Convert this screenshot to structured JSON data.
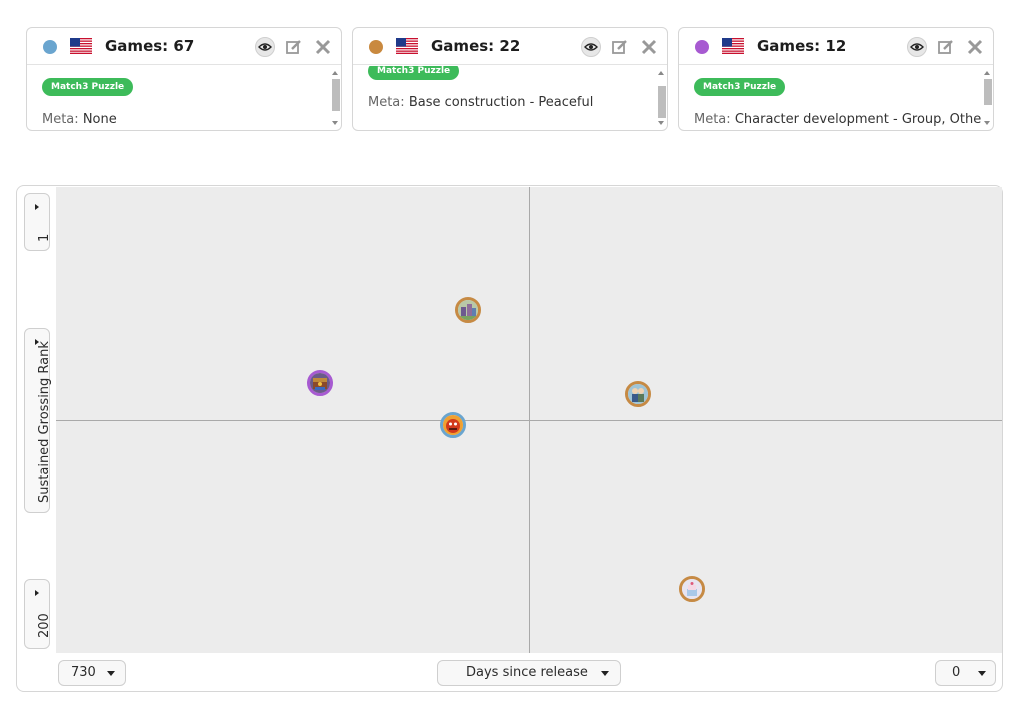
{
  "cards": [
    {
      "dot_color": "#6aa5cf",
      "flag": "us-flag-icon",
      "games": "Games: 67",
      "tag": "Match3 Puzzle",
      "meta_key": "Meta:",
      "meta_value": "None"
    },
    {
      "dot_color": "#c9893f",
      "flag": "us-flag-icon",
      "games": "Games: 22",
      "tag": "Match3 Puzzle",
      "meta_key": "Meta:",
      "meta_value": "Base construction - Peaceful"
    },
    {
      "dot_color": "#a75ad1",
      "flag": "us-flag-icon",
      "games": "Games: 12",
      "tag": "Match3 Puzzle",
      "meta_key": "Meta:",
      "meta_value": "Character development - Group, Other"
    }
  ],
  "card_icons": [
    "eye-icon",
    "edit-icon",
    "close-icon"
  ],
  "y_axis": {
    "top": "1",
    "label": "Sustained Grossing Rank",
    "bottom": "200"
  },
  "x_axis": {
    "left": "730",
    "label": "Days since release",
    "right": "0"
  },
  "colors": {
    "tag": "#3dbb5a",
    "plot_bg": "#ececec",
    "orange": "#c68a44",
    "purple": "#a75ad1",
    "blue": "#6aa5cf"
  },
  "points": [
    {
      "series": 1,
      "icon": "castle-game-icon"
    },
    {
      "series": 2,
      "icon": "treasure-game-icon"
    },
    {
      "series": 0,
      "icon": "red-creature-game-icon"
    },
    {
      "series": 1,
      "icon": "characters-game-icon"
    },
    {
      "series": 1,
      "icon": "cake-game-icon"
    }
  ]
}
